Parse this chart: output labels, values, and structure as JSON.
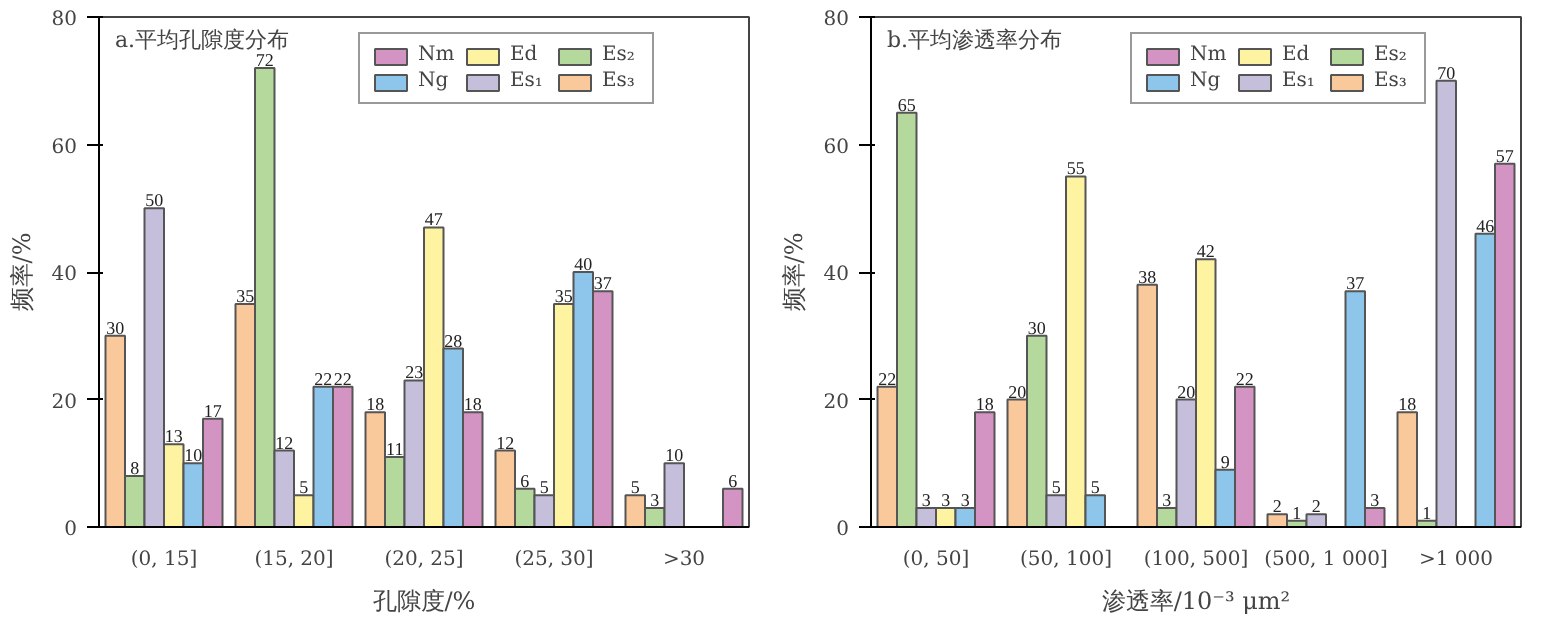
{
  "chart_data": [
    {
      "type": "bar",
      "title": "a.平均孔隙度分布",
      "xlabel": "孔隙度/%",
      "ylabel": "频率/%",
      "categories": [
        "(0, 15]",
        "(15, 20]",
        "(20, 25]",
        "(25, 30]",
        ">30"
      ],
      "ylim": [
        0,
        80
      ],
      "yticks": [
        0,
        20,
        40,
        60,
        80
      ],
      "grid": false,
      "legend": "top right",
      "data_labels": true,
      "series": [
        {
          "name": "Es₃",
          "color": "#f9c89b",
          "values": [
            30,
            35,
            18,
            12,
            5
          ]
        },
        {
          "name": "Es₂",
          "color": "#b5d99c",
          "values": [
            8,
            72,
            11,
            6,
            3
          ]
        },
        {
          "name": "Es₁",
          "color": "#c5bfdc",
          "values": [
            50,
            12,
            23,
            5,
            10
          ]
        },
        {
          "name": "Ed",
          "color": "#fdf3a0",
          "values": [
            13,
            5,
            47,
            35,
            null
          ]
        },
        {
          "name": "Ng",
          "color": "#8ec5ea",
          "values": [
            10,
            22,
            28,
            40,
            null
          ]
        },
        {
          "name": "Nm",
          "color": "#d393c3",
          "values": [
            17,
            22,
            18,
            37,
            6
          ]
        }
      ]
    },
    {
      "type": "bar",
      "title": "b.平均渗透率分布",
      "xlabel": "渗透率/10⁻³ μm²",
      "ylabel": "频率/%",
      "categories": [
        "(0, 50]",
        "(50, 100]",
        "(100, 500]",
        "(500, 1 000]",
        ">1 000"
      ],
      "ylim": [
        0,
        80
      ],
      "yticks": [
        0,
        20,
        40,
        60,
        80
      ],
      "grid": false,
      "legend": "top right",
      "data_labels": true,
      "series": [
        {
          "name": "Es₃",
          "color": "#f9c89b",
          "values": [
            22,
            20,
            38,
            2,
            18
          ]
        },
        {
          "name": "Es₂",
          "color": "#b5d99c",
          "values": [
            65,
            30,
            3,
            1,
            1
          ]
        },
        {
          "name": "Es₁",
          "color": "#c5bfdc",
          "values": [
            3,
            5,
            20,
            2,
            70
          ]
        },
        {
          "name": "Ed",
          "color": "#fdf3a0",
          "values": [
            3,
            55,
            42,
            null,
            null
          ]
        },
        {
          "name": "Ng",
          "color": "#8ec5ea",
          "values": [
            3,
            5,
            9,
            37,
            46
          ]
        },
        {
          "name": "Nm",
          "color": "#d393c3",
          "values": [
            18,
            null,
            22,
            3,
            57
          ]
        }
      ]
    }
  ]
}
